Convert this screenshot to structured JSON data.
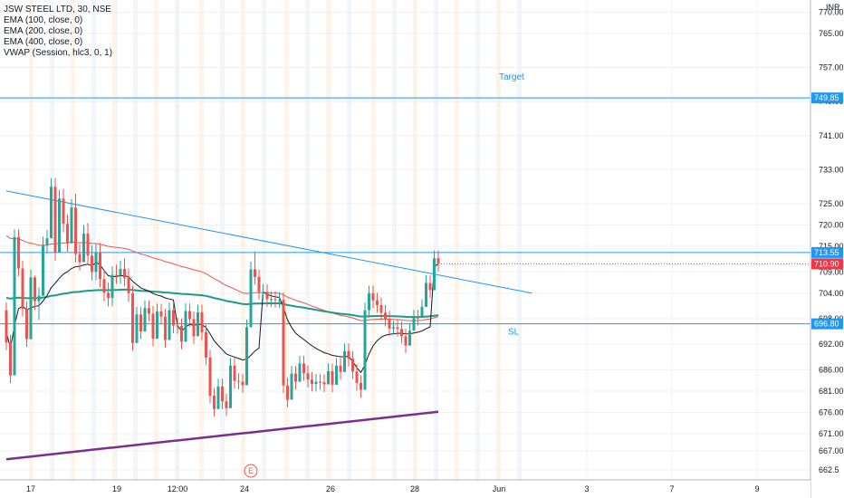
{
  "chart_data": {
    "type": "candlestick",
    "symbol_title": "JSW STEEL LTD, 30, NSE",
    "indicators": [
      {
        "label": "EMA (100, close, 0)",
        "color": "#f05545"
      },
      {
        "label": "EMA (200, close, 0)",
        "color": "#1b9b8a"
      },
      {
        "label": "EMA (400, close, 0)",
        "color": "#7b2f8f"
      },
      {
        "label": "VWAP (Session, hlc3, 0, 1)",
        "color": "#131722"
      }
    ],
    "currency": "INR",
    "y_ticks": [
      770.0,
      765.0,
      757.0,
      749.0,
      741.0,
      733.0,
      725.0,
      720.0,
      715.0,
      709.0,
      704.0,
      698.0,
      692.0,
      686.0,
      681.0,
      676.0,
      671.0,
      667.0,
      662.5
    ],
    "y_range": [
      661.0,
      772.0
    ],
    "x_ticks": [
      "17",
      "19",
      "12:00",
      "24",
      "26",
      "28",
      "Jun",
      "3",
      "7",
      "9"
    ],
    "levels": [
      {
        "label": "Target",
        "price": 749.85,
        "price_label": "749.85",
        "color": "#2196f3"
      },
      {
        "label": "",
        "price": 713.55,
        "price_label": "713.55",
        "color": "#2196f3"
      },
      {
        "label": "SL",
        "price": 696.8,
        "price_label": "696.80",
        "color": "#2196f3"
      }
    ],
    "last_price": {
      "price": 710.9,
      "label": "710.90",
      "color": "#f23645"
    },
    "trendline": {
      "from": [
        0,
        728.0
      ],
      "to": [
        129,
        704.0
      ],
      "color": "#2196f3"
    },
    "event_marker": {
      "label": "E",
      "bar": 50
    },
    "grid": true,
    "candles": [
      [
        700.0,
        701.8,
        690.6,
        692.4
      ],
      [
        692.4,
        694.2,
        682.9,
        684.7
      ],
      [
        684.7,
        719.0,
        684.7,
        717.2
      ],
      [
        717.2,
        719.0,
        708.0,
        709.8
      ],
      [
        709.8,
        711.6,
        698.5,
        700.3
      ],
      [
        700.3,
        702.1,
        691.4,
        693.2
      ],
      [
        693.2,
        709.5,
        693.2,
        707.7
      ],
      [
        707.7,
        708.1,
        700.1,
        702.1
      ],
      [
        702.1,
        705.4,
        697.7,
        703.4
      ],
      [
        703.4,
        717.3,
        703.4,
        715.3
      ],
      [
        715.3,
        718.9,
        713.3,
        716.9
      ],
      [
        716.9,
        731.0,
        716.9,
        729.0
      ],
      [
        729.0,
        731.0,
        711.6,
        713.6
      ],
      [
        713.6,
        728.2,
        713.6,
        726.2
      ],
      [
        726.2,
        728.5,
        718.3,
        720.3
      ],
      [
        720.3,
        722.5,
        713.7,
        715.7
      ],
      [
        715.7,
        726.1,
        715.7,
        724.1
      ],
      [
        724.1,
        727.4,
        711.2,
        713.2
      ],
      [
        713.2,
        715.6,
        709.3,
        711.3
      ],
      [
        711.3,
        720.0,
        711.3,
        718.0
      ],
      [
        718.0,
        720.5,
        710.8,
        712.8
      ],
      [
        712.8,
        715.2,
        707.0,
        709.0
      ],
      [
        709.0,
        715.6,
        707.0,
        713.6
      ],
      [
        713.6,
        715.8,
        705.3,
        707.3
      ],
      [
        707.3,
        709.6,
        702.1,
        704.1
      ],
      [
        704.1,
        706.5,
        700.9,
        702.9
      ],
      [
        702.9,
        710.3,
        700.9,
        708.3
      ],
      [
        708.3,
        710.7,
        706.2,
        708.2
      ],
      [
        708.2,
        711.7,
        706.2,
        709.7
      ],
      [
        709.7,
        712.2,
        705.6,
        707.6
      ],
      [
        707.6,
        709.8,
        702.0,
        704.0
      ],
      [
        704.0,
        705.8,
        690.5,
        692.3
      ],
      [
        692.3,
        700.8,
        692.3,
        699.0
      ],
      [
        699.0,
        700.8,
        693.2,
        695.0
      ],
      [
        695.0,
        702.3,
        695.0,
        700.5
      ],
      [
        700.5,
        702.3,
        697.4,
        699.2
      ],
      [
        699.2,
        701.0,
        691.5,
        693.3
      ],
      [
        693.3,
        701.5,
        693.3,
        699.7
      ],
      [
        699.7,
        701.5,
        696.7,
        698.5
      ],
      [
        698.5,
        700.3,
        691.2,
        693.0
      ],
      [
        693.0,
        701.8,
        693.0,
        700.0
      ],
      [
        700.0,
        701.8,
        694.6,
        696.4
      ],
      [
        696.4,
        698.2,
        694.5,
        696.3
      ],
      [
        696.3,
        698.1,
        690.8,
        692.6
      ],
      [
        692.6,
        701.6,
        692.6,
        699.8
      ],
      [
        699.8,
        701.6,
        696.1,
        697.9
      ],
      [
        697.9,
        699.7,
        692.1,
        693.9
      ],
      [
        693.9,
        701.3,
        693.9,
        699.5
      ],
      [
        699.5,
        701.3,
        693.0,
        694.8
      ],
      [
        694.8,
        696.6,
        687.1,
        688.9
      ],
      [
        688.9,
        690.7,
        678.1,
        679.9
      ],
      [
        679.9,
        681.7,
        675.0,
        676.8
      ],
      [
        676.8,
        683.9,
        676.8,
        682.1
      ],
      [
        682.1,
        683.9,
        676.8,
        678.6
      ],
      [
        678.6,
        680.4,
        675.2,
        677.0
      ],
      [
        677.0,
        688.8,
        677.0,
        687.0
      ],
      [
        687.0,
        688.8,
        681.6,
        683.4
      ],
      [
        683.4,
        685.2,
        681.4,
        683.2
      ],
      [
        683.2,
        685.0,
        680.6,
        682.4
      ],
      [
        682.4,
        697.8,
        682.4,
        696.0
      ],
      [
        696.0,
        711.4,
        696.0,
        709.6
      ],
      [
        709.6,
        713.8,
        706.0,
        707.8
      ],
      [
        707.8,
        709.6,
        702.5,
        704.3
      ],
      [
        704.3,
        706.1,
        702.5,
        704.3
      ],
      [
        704.3,
        706.1,
        700.8,
        702.6
      ],
      [
        702.6,
        704.4,
        700.8,
        702.6
      ],
      [
        702.6,
        704.4,
        700.6,
        702.4
      ],
      [
        702.4,
        704.2,
        700.6,
        702.4
      ],
      [
        702.4,
        704.2,
        680.5,
        682.3
      ],
      [
        682.3,
        684.1,
        677.2,
        679.0
      ],
      [
        679.0,
        686.9,
        679.0,
        685.1
      ],
      [
        685.1,
        686.9,
        681.4,
        683.2
      ],
      [
        683.2,
        689.3,
        683.2,
        687.5
      ],
      [
        687.5,
        689.3,
        683.4,
        685.2
      ],
      [
        685.2,
        687.0,
        681.9,
        683.7
      ],
      [
        683.7,
        685.5,
        680.9,
        682.7
      ],
      [
        682.7,
        685.0,
        680.9,
        683.2
      ],
      [
        683.2,
        685.0,
        681.3,
        683.1
      ],
      [
        683.1,
        684.9,
        680.8,
        682.6
      ],
      [
        682.6,
        687.5,
        682.6,
        685.7
      ],
      [
        685.7,
        687.5,
        680.7,
        682.5
      ],
      [
        682.5,
        688.8,
        682.5,
        687.0
      ],
      [
        687.0,
        688.8,
        683.7,
        685.5
      ],
      [
        685.5,
        692.2,
        685.5,
        690.4
      ],
      [
        690.4,
        692.2,
        686.8,
        688.6
      ],
      [
        688.6,
        690.4,
        683.8,
        685.6
      ],
      [
        685.6,
        687.4,
        681.1,
        682.9
      ],
      [
        682.9,
        684.7,
        679.5,
        681.3
      ],
      [
        681.3,
        701.8,
        681.3,
        700.0
      ],
      [
        700.0,
        705.8,
        698.2,
        704.0
      ],
      [
        704.0,
        705.8,
        700.5,
        702.3
      ],
      [
        702.3,
        704.1,
        699.4,
        701.2
      ],
      [
        701.2,
        703.0,
        697.6,
        699.4
      ],
      [
        699.4,
        701.2,
        696.2,
        698.0
      ],
      [
        698.0,
        699.8,
        693.9,
        695.7
      ],
      [
        695.7,
        697.5,
        694.2,
        696.0
      ],
      [
        696.0,
        697.8,
        693.8,
        695.6
      ],
      [
        695.6,
        697.4,
        692.1,
        693.9
      ],
      [
        693.9,
        695.7,
        689.9,
        691.7
      ],
      [
        691.7,
        697.0,
        691.7,
        695.2
      ],
      [
        695.2,
        700.1,
        695.2,
        698.3
      ],
      [
        698.3,
        700.1,
        696.4,
        698.2
      ],
      [
        698.2,
        702.6,
        698.2,
        700.8
      ],
      [
        700.8,
        708.2,
        700.8,
        706.4
      ],
      [
        706.4,
        708.2,
        702.9,
        704.7
      ],
      [
        704.7,
        714.0,
        704.7,
        712.2
      ],
      [
        712.2,
        714.0,
        709.1,
        710.9
      ]
    ]
  }
}
